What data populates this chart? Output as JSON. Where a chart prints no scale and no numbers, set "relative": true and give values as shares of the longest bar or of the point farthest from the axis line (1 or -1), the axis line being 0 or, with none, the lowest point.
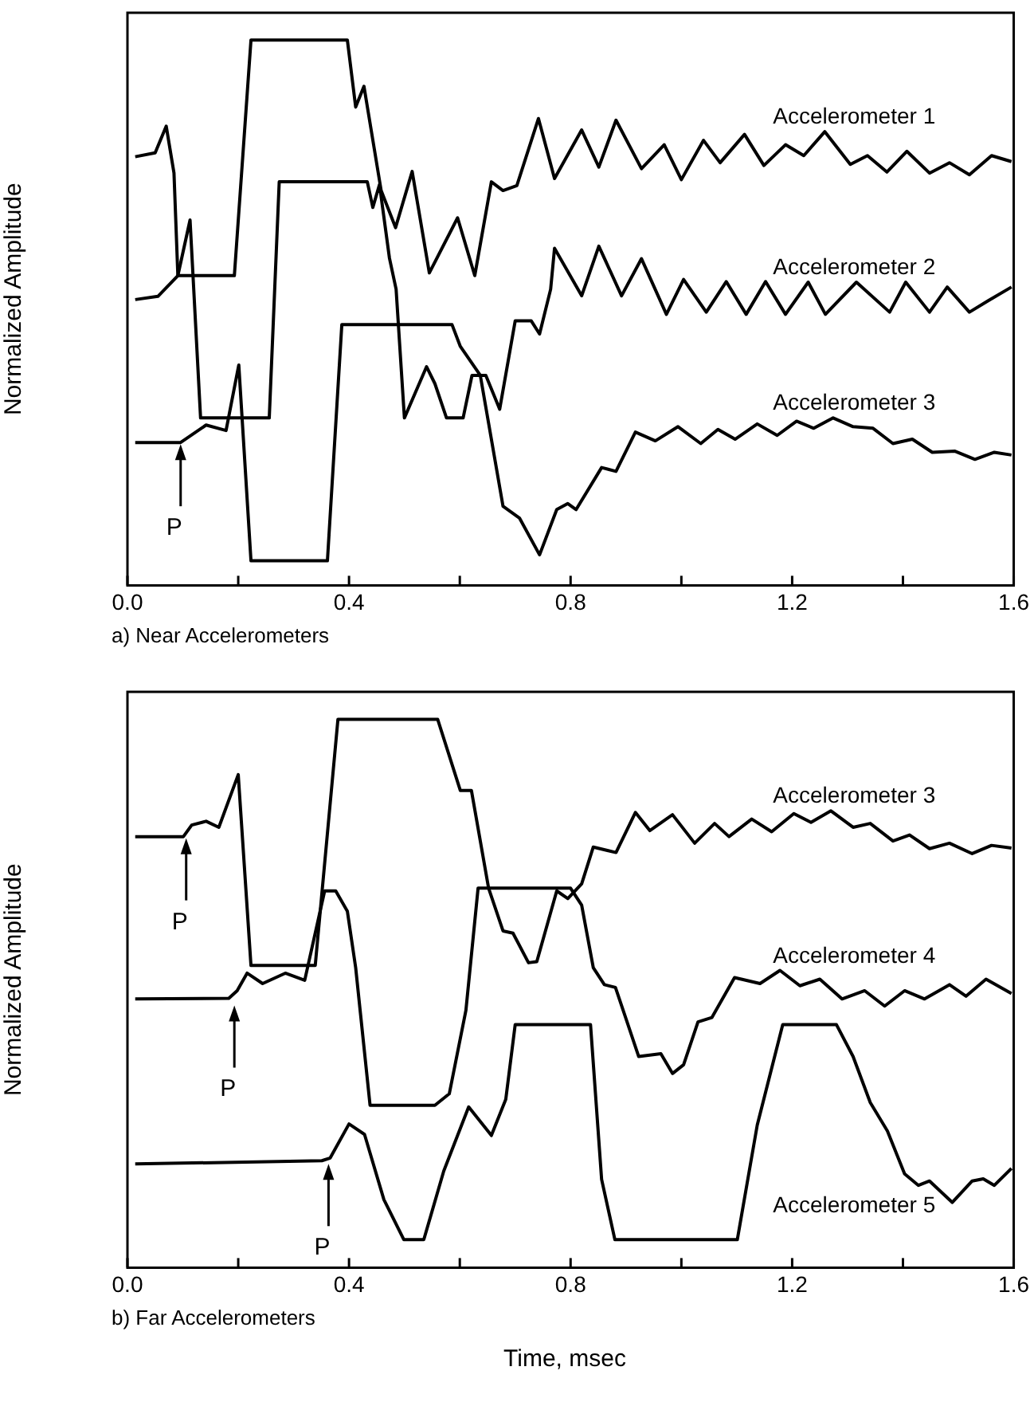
{
  "chart_data": [
    {
      "type": "line",
      "title": "a)  Near Accelerometers",
      "ylabel": "Normalized Amplitude",
      "relative": true,
      "xlim": [
        0,
        1.6
      ],
      "xticks": [
        {
          "value": 0,
          "label": "0.0"
        },
        {
          "value": 0.2,
          "label": null
        },
        0.4,
        {
          "value": 0.6,
          "label": null
        },
        0.8,
        {
          "value": 1.0,
          "label": null
        },
        1.2,
        {
          "value": 1.4,
          "label": null
        },
        1.6
      ],
      "grid": false,
      "legend": false,
      "marker": "none",
      "line_style": "solid",
      "annotations": [
        {
          "text": "P",
          "x": 0.096,
          "y": 0.262
        }
      ],
      "series": [
        {
          "name": "Accelerometer 1",
          "color": "#000000",
          "x": [
            0.014,
            0.05,
            0.07,
            0.084,
            0.091,
            0.193,
            0.223,
            0.397,
            0.412,
            0.427,
            0.458,
            0.484,
            0.514,
            0.545,
            0.596,
            0.627,
            0.657,
            0.678,
            0.703,
            0.742,
            0.771,
            0.82,
            0.851,
            0.882,
            0.928,
            0.969,
            1.0,
            1.04,
            1.07,
            1.114,
            1.149,
            1.188,
            1.221,
            1.259,
            1.305,
            1.336,
            1.371,
            1.407,
            1.448,
            1.484,
            1.52,
            1.56,
            1.596
          ],
          "values": [
            0.786,
            0.793,
            0.842,
            0.756,
            0.568,
            0.568,
            1.0,
            1.0,
            0.877,
            0.915,
            0.724,
            0.656,
            0.759,
            0.573,
            0.674,
            0.568,
            0.74,
            0.724,
            0.733,
            0.856,
            0.746,
            0.835,
            0.767,
            0.853,
            0.764,
            0.808,
            0.744,
            0.816,
            0.775,
            0.827,
            0.77,
            0.808,
            0.788,
            0.832,
            0.772,
            0.788,
            0.758,
            0.796,
            0.756,
            0.775,
            0.753,
            0.788,
            0.777
          ]
        },
        {
          "name": "Accelerometer 2",
          "color": "#000000",
          "x": [
            0.014,
            0.055,
            0.091,
            0.113,
            0.132,
            0.256,
            0.274,
            0.433,
            0.443,
            0.455,
            0.473,
            0.485,
            0.5,
            0.54,
            0.555,
            0.576,
            0.606,
            0.622,
            0.647,
            0.672,
            0.7,
            0.729,
            0.744,
            0.764,
            0.771,
            0.82,
            0.851,
            0.892,
            0.928,
            0.973,
            1.004,
            1.045,
            1.081,
            1.117,
            1.152,
            1.188,
            1.229,
            1.26,
            1.316,
            1.376,
            1.405,
            1.448,
            1.48,
            1.52,
            1.554,
            1.596
          ],
          "values": [
            0.524,
            0.53,
            0.568,
            0.67,
            0.307,
            0.307,
            0.74,
            0.74,
            0.693,
            0.735,
            0.6,
            0.543,
            0.307,
            0.401,
            0.37,
            0.307,
            0.307,
            0.385,
            0.385,
            0.323,
            0.485,
            0.485,
            0.461,
            0.543,
            0.618,
            0.531,
            0.622,
            0.531,
            0.599,
            0.497,
            0.561,
            0.501,
            0.557,
            0.497,
            0.557,
            0.497,
            0.556,
            0.497,
            0.556,
            0.501,
            0.556,
            0.501,
            0.547,
            0.501,
            0.522,
            0.547
          ]
        },
        {
          "name": "Accelerometer 3",
          "color": "#000000",
          "x": [
            0.014,
            0.096,
            0.142,
            0.178,
            0.201,
            0.223,
            0.361,
            0.387,
            0.586,
            0.601,
            0.637,
            0.678,
            0.708,
            0.744,
            0.775,
            0.795,
            0.81,
            0.856,
            0.882,
            0.917,
            0.953,
            0.994,
            1.035,
            1.066,
            1.097,
            1.137,
            1.173,
            1.208,
            1.239,
            1.274,
            1.31,
            1.346,
            1.382,
            1.417,
            1.453,
            1.494,
            1.53,
            1.565,
            1.596
          ],
          "values": [
            0.262,
            0.262,
            0.294,
            0.284,
            0.404,
            0.045,
            0.045,
            0.478,
            0.478,
            0.438,
            0.385,
            0.145,
            0.123,
            0.056,
            0.139,
            0.15,
            0.139,
            0.216,
            0.209,
            0.281,
            0.265,
            0.291,
            0.26,
            0.286,
            0.268,
            0.296,
            0.275,
            0.301,
            0.288,
            0.307,
            0.291,
            0.288,
            0.26,
            0.268,
            0.244,
            0.246,
            0.231,
            0.244,
            0.239
          ]
        }
      ]
    },
    {
      "type": "line",
      "title": "b)  Far Accelerometers",
      "xlabel": "Time, msec",
      "ylabel": "Normalized Amplitude",
      "relative": true,
      "xlim": [
        0,
        1.6
      ],
      "xticks": [
        {
          "value": 0,
          "label": "0.0"
        },
        {
          "value": 0.2,
          "label": null
        },
        0.4,
        {
          "value": 0.6,
          "label": null
        },
        0.8,
        {
          "value": 1.0,
          "label": null
        },
        1.2,
        {
          "value": 1.4,
          "label": null
        },
        1.6
      ],
      "grid": false,
      "legend": false,
      "marker": "none",
      "line_style": "solid",
      "annotations": [
        {
          "text": "P",
          "x": 0.106,
          "y": 0.786
        },
        {
          "text": "P",
          "x": 0.193,
          "y": 0.481
        },
        {
          "text": "P",
          "x": 0.363,
          "y": 0.192
        }
      ],
      "series": [
        {
          "name": "Accelerometer 3",
          "color": "#000000",
          "x": [
            0.014,
            0.101,
            0.116,
            0.142,
            0.165,
            0.2,
            0.223,
            0.339,
            0.38,
            0.56,
            0.601,
            0.621,
            0.652,
            0.678,
            0.696,
            0.724,
            0.739,
            0.775,
            0.795,
            0.82,
            0.841,
            0.882,
            0.917,
            0.943,
            0.984,
            1.024,
            1.06,
            1.086,
            1.127,
            1.163,
            1.203,
            1.234,
            1.27,
            1.31,
            1.341,
            1.382,
            1.412,
            1.448,
            1.484,
            1.525,
            1.56,
            1.596
          ],
          "values": [
            0.786,
            0.786,
            0.807,
            0.814,
            0.803,
            0.899,
            0.551,
            0.551,
            1.0,
            1.0,
            0.87,
            0.87,
            0.692,
            0.614,
            0.61,
            0.556,
            0.558,
            0.687,
            0.673,
            0.7,
            0.767,
            0.757,
            0.83,
            0.797,
            0.826,
            0.774,
            0.81,
            0.786,
            0.818,
            0.795,
            0.828,
            0.812,
            0.833,
            0.803,
            0.81,
            0.778,
            0.789,
            0.764,
            0.774,
            0.755,
            0.77,
            0.765
          ]
        },
        {
          "name": "Accelerometer 4",
          "color": "#000000",
          "x": [
            0.014,
            0.183,
            0.198,
            0.216,
            0.244,
            0.285,
            0.32,
            0.356,
            0.376,
            0.397,
            0.412,
            0.438,
            0.555,
            0.581,
            0.611,
            0.633,
            0.8,
            0.82,
            0.841,
            0.861,
            0.881,
            0.923,
            0.963,
            0.984,
            1.004,
            1.03,
            1.055,
            1.096,
            1.142,
            1.178,
            1.214,
            1.25,
            1.29,
            1.331,
            1.367,
            1.403,
            1.439,
            1.484,
            1.514,
            1.55,
            1.596
          ],
          "values": [
            0.49,
            0.491,
            0.505,
            0.537,
            0.518,
            0.537,
            0.524,
            0.687,
            0.687,
            0.65,
            0.547,
            0.296,
            0.296,
            0.317,
            0.469,
            0.692,
            0.692,
            0.661,
            0.547,
            0.516,
            0.511,
            0.385,
            0.39,
            0.354,
            0.37,
            0.448,
            0.456,
            0.529,
            0.518,
            0.542,
            0.514,
            0.526,
            0.49,
            0.505,
            0.477,
            0.505,
            0.49,
            0.516,
            0.495,
            0.526,
            0.5
          ]
        },
        {
          "name": "Accelerometer 5",
          "color": "#000000",
          "x": [
            0.014,
            0.351,
            0.366,
            0.4,
            0.428,
            0.463,
            0.499,
            0.535,
            0.571,
            0.616,
            0.657,
            0.683,
            0.7,
            0.836,
            0.856,
            0.88,
            1.101,
            1.137,
            1.183,
            1.28,
            1.31,
            1.341,
            1.372,
            1.403,
            1.428,
            1.448,
            1.489,
            1.525,
            1.545,
            1.565,
            1.596
          ],
          "values": [
            0.189,
            0.195,
            0.2,
            0.262,
            0.243,
            0.124,
            0.051,
            0.051,
            0.176,
            0.293,
            0.241,
            0.307,
            0.443,
            0.443,
            0.161,
            0.051,
            0.051,
            0.26,
            0.443,
            0.443,
            0.385,
            0.301,
            0.249,
            0.171,
            0.15,
            0.158,
            0.119,
            0.158,
            0.162,
            0.15,
            0.181
          ]
        }
      ]
    }
  ]
}
